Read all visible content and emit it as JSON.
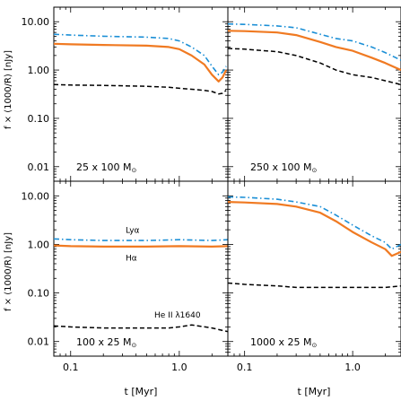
{
  "figure": {
    "ylabel": "f × (1000/R) [nJy]",
    "xlabel": "t [Myr]"
  },
  "colors": {
    "lya": "#1b8fd6",
    "halpha": "#f07a22",
    "heii": "#000000",
    "axes": "#000000"
  },
  "chart_data": [
    {
      "type": "line",
      "panel": "top-left",
      "annotation": "25 x 100 M",
      "annotation_sub": "⊙",
      "xscale": "log",
      "yscale": "log",
      "xlim": [
        0.07,
        2.8
      ],
      "ylim": [
        0.005,
        20
      ],
      "xticks": [],
      "yticks": [
        "0.01",
        "0.10",
        "1.00",
        "10.00"
      ],
      "series": [
        {
          "key": "lya",
          "style": "dash-dot",
          "x": [
            0.07,
            0.1,
            0.2,
            0.5,
            0.8,
            1.0,
            1.3,
            1.7,
            2.0,
            2.3,
            2.5,
            2.7
          ],
          "y": [
            5.5,
            5.3,
            5.0,
            4.8,
            4.5,
            4.0,
            3.0,
            2.0,
            1.2,
            0.8,
            0.9,
            1.2
          ]
        },
        {
          "key": "halpha",
          "style": "solid",
          "x": [
            0.07,
            0.1,
            0.2,
            0.5,
            0.8,
            1.0,
            1.3,
            1.7,
            2.0,
            2.3,
            2.5,
            2.7
          ],
          "y": [
            3.5,
            3.4,
            3.3,
            3.2,
            3.0,
            2.7,
            2.0,
            1.3,
            0.8,
            0.58,
            0.7,
            1.0
          ]
        },
        {
          "key": "heii",
          "style": "dashed",
          "x": [
            0.07,
            0.1,
            0.2,
            0.5,
            0.8,
            1.0,
            1.3,
            1.7,
            2.0,
            2.3,
            2.5,
            2.7
          ],
          "y": [
            0.5,
            0.49,
            0.48,
            0.46,
            0.44,
            0.42,
            0.4,
            0.38,
            0.36,
            0.32,
            0.33,
            0.38
          ]
        }
      ]
    },
    {
      "type": "line",
      "panel": "top-right",
      "annotation": "250 x 100 M",
      "annotation_sub": "⊙",
      "xscale": "log",
      "yscale": "log",
      "xlim": [
        0.07,
        2.8
      ],
      "ylim": [
        0.005,
        20
      ],
      "xticks": [],
      "yticks": [],
      "series": [
        {
          "key": "lya",
          "style": "dash-dot",
          "x": [
            0.07,
            0.1,
            0.2,
            0.3,
            0.5,
            0.7,
            1.0,
            1.5,
            2.0,
            2.8
          ],
          "y": [
            9.0,
            8.8,
            8.2,
            7.5,
            5.5,
            4.5,
            4.0,
            3.0,
            2.3,
            1.6
          ]
        },
        {
          "key": "halpha",
          "style": "solid",
          "x": [
            0.07,
            0.1,
            0.2,
            0.3,
            0.5,
            0.7,
            1.0,
            1.5,
            2.0,
            2.8
          ],
          "y": [
            6.5,
            6.4,
            6.0,
            5.3,
            3.8,
            3.0,
            2.5,
            1.8,
            1.4,
            1.0
          ]
        },
        {
          "key": "heii",
          "style": "dashed",
          "x": [
            0.07,
            0.1,
            0.2,
            0.3,
            0.5,
            0.7,
            1.0,
            1.5,
            2.0,
            2.8
          ],
          "y": [
            2.8,
            2.7,
            2.4,
            2.0,
            1.4,
            1.0,
            0.8,
            0.7,
            0.6,
            0.5
          ]
        }
      ]
    },
    {
      "type": "line",
      "panel": "bottom-left",
      "annotation": "100 x 25 M",
      "annotation_sub": "⊙",
      "xscale": "log",
      "yscale": "log",
      "xlim": [
        0.07,
        2.8
      ],
      "ylim": [
        0.005,
        20
      ],
      "xticks": [
        "0.1",
        "1.0"
      ],
      "yticks": [
        "0.01",
        "0.10",
        "1.00",
        "10.00"
      ],
      "labels": {
        "lya": "Lyα",
        "halpha": "Hα",
        "heii": "He II λ1640"
      },
      "series": [
        {
          "key": "lya",
          "style": "dash-dot",
          "x": [
            0.07,
            0.1,
            0.2,
            0.5,
            1.0,
            2.0,
            2.8
          ],
          "y": [
            1.3,
            1.25,
            1.2,
            1.2,
            1.25,
            1.2,
            1.25
          ]
        },
        {
          "key": "halpha",
          "style": "solid",
          "x": [
            0.07,
            0.1,
            0.2,
            0.5,
            1.0,
            2.0,
            2.8
          ],
          "y": [
            0.95,
            0.92,
            0.9,
            0.9,
            0.92,
            0.9,
            0.92
          ]
        },
        {
          "key": "heii",
          "style": "dashed",
          "x": [
            0.07,
            0.1,
            0.2,
            0.5,
            0.8,
            1.0,
            1.3,
            2.0,
            2.8
          ],
          "y": [
            0.021,
            0.02,
            0.019,
            0.019,
            0.019,
            0.02,
            0.022,
            0.019,
            0.016
          ]
        }
      ]
    },
    {
      "type": "line",
      "panel": "bottom-right",
      "annotation": "1000 x 25 M",
      "annotation_sub": "⊙",
      "xscale": "log",
      "yscale": "log",
      "xlim": [
        0.07,
        2.8
      ],
      "ylim": [
        0.005,
        20
      ],
      "xticks": [
        "0.1",
        "1.0"
      ],
      "yticks": [],
      "series": [
        {
          "key": "lya",
          "style": "dash-dot",
          "x": [
            0.07,
            0.1,
            0.2,
            0.3,
            0.5,
            0.7,
            1.0,
            1.5,
            2.0,
            2.3,
            2.8
          ],
          "y": [
            9.5,
            9.3,
            8.5,
            7.5,
            6.0,
            4.0,
            2.5,
            1.5,
            1.1,
            0.8,
            1.0
          ]
        },
        {
          "key": "halpha",
          "style": "solid",
          "x": [
            0.07,
            0.1,
            0.2,
            0.3,
            0.5,
            0.7,
            1.0,
            1.5,
            2.0,
            2.3,
            2.8
          ],
          "y": [
            7.5,
            7.3,
            6.8,
            6.0,
            4.5,
            3.0,
            1.8,
            1.1,
            0.8,
            0.58,
            0.7
          ]
        },
        {
          "key": "heii",
          "style": "dashed",
          "x": [
            0.07,
            0.1,
            0.2,
            0.3,
            0.5,
            0.7,
            1.0,
            1.5,
            2.0,
            2.8
          ],
          "y": [
            0.16,
            0.15,
            0.14,
            0.13,
            0.13,
            0.13,
            0.13,
            0.13,
            0.13,
            0.14
          ]
        }
      ]
    }
  ]
}
